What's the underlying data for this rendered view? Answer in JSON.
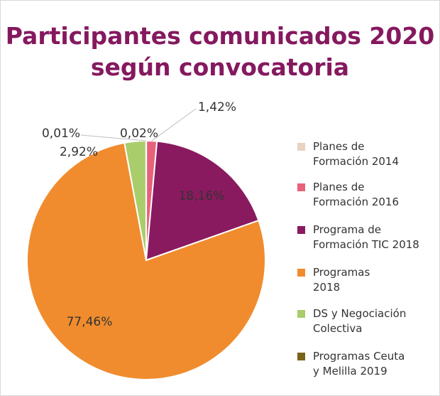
{
  "chart_data": {
    "type": "pie",
    "title": "Participantes comunicados 2020\nsegún convocatoria",
    "categories": [
      "Planes de\nFormación 2014",
      "Planes de\nFormación 2016",
      "Programa de\nFormación TIC 2018",
      "Programas\n2018",
      "DS y Negociación\nColectiva",
      "Programas Ceuta\ny Melilla 2019"
    ],
    "values": [
      0.02,
      1.42,
      18.16,
      77.46,
      2.92,
      0.01
    ],
    "value_labels": [
      "0,02%",
      "1,42%",
      "18,16%",
      "77,46%",
      "2,92%",
      "0,01%"
    ],
    "colors": [
      "#e8d2c4",
      "#e8617a",
      "#8a1a5f",
      "#f08c2e",
      "#a9cd6b",
      "#7a6419"
    ],
    "legend": "right"
  }
}
